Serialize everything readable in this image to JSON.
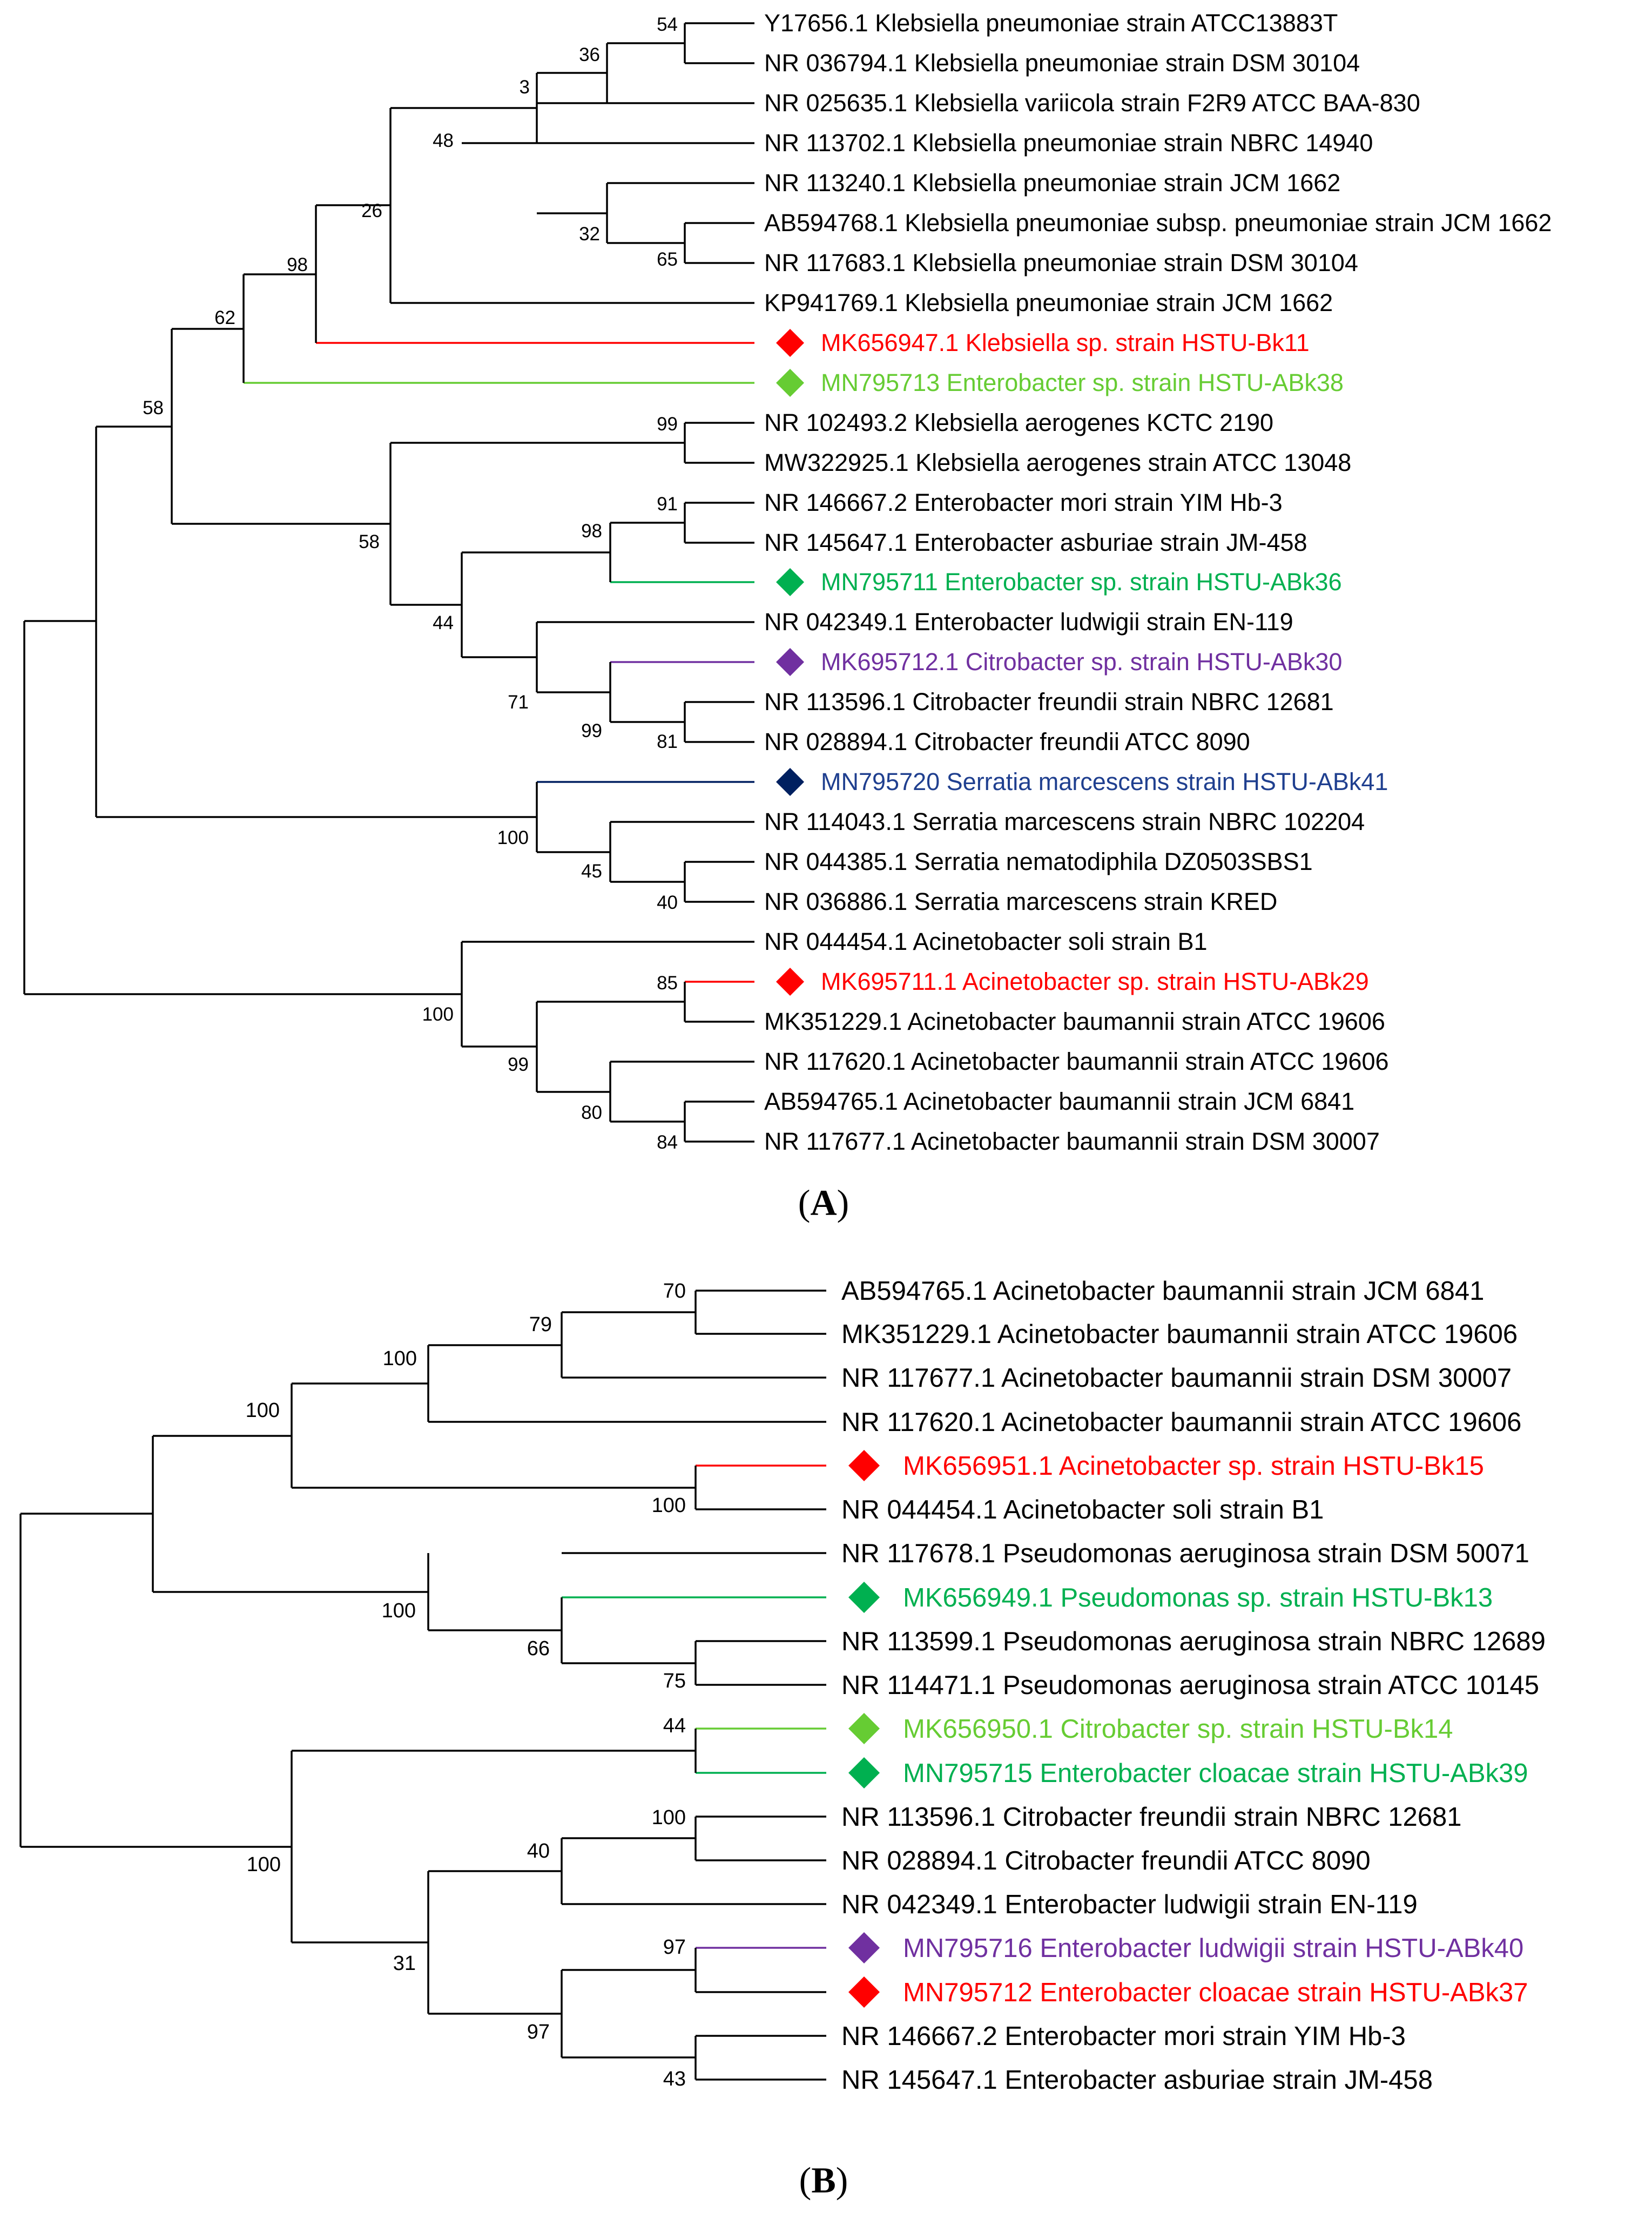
{
  "figure": {
    "panels": [
      {
        "letter": "A",
        "leaves": [
          {
            "label": "Y17656.1 Klebsiella pneumoniae strain ATCC13883T"
          },
          {
            "label": "NR 036794.1 Klebsiella pneumoniae strain DSM 30104"
          },
          {
            "label": "NR 025635.1 Klebsiella variicola strain F2R9 ATCC BAA-830"
          },
          {
            "label": "NR 113702.1 Klebsiella pneumoniae strain NBRC 14940"
          },
          {
            "label": "NR 113240.1 Klebsiella pneumoniae strain JCM 1662"
          },
          {
            "label": "AB594768.1 Klebsiella pneumoniae subsp. pneumoniae strain JCM 1662"
          },
          {
            "label": "NR 117683.1 Klebsiella pneumoniae strain DSM 30104"
          },
          {
            "label": "KP941769.1 Klebsiella pneumoniae strain JCM 1662"
          },
          {
            "label": "MK656947.1 Klebsiella sp. strain HSTU-Bk11",
            "color": "#ff0000",
            "marker": "diamond"
          },
          {
            "label": "MN795713 Enterobacter sp. strain HSTU-ABk38",
            "color": "#66cc33",
            "marker": "diamond"
          },
          {
            "label": "NR 102493.2 Klebsiella aerogenes KCTC 2190"
          },
          {
            "label": "MW322925.1 Klebsiella aerogenes strain ATCC 13048"
          },
          {
            "label": "NR 146667.2 Enterobacter mori strain YIM Hb-3"
          },
          {
            "label": "NR 145647.1 Enterobacter asburiae strain JM-458"
          },
          {
            "label": "MN795711 Enterobacter sp. strain HSTU-ABk36",
            "color": "#00b050",
            "marker": "diamond"
          },
          {
            "label": "NR 042349.1 Enterobacter ludwigii strain EN-119"
          },
          {
            "label": "MK695712.1 Citrobacter sp. strain HSTU-ABk30",
            "color": "#7030a0",
            "marker": "diamond"
          },
          {
            "label": "NR 113596.1 Citrobacter freundii strain NBRC 12681"
          },
          {
            "label": "NR 028894.1 Citrobacter freundii ATCC 8090"
          },
          {
            "label": "MN795720 Serratia marcescens strain HSTU-ABk41",
            "color": "#002060",
            "marker": "diamond"
          },
          {
            "label": "NR 114043.1 Serratia marcescens strain NBRC 102204"
          },
          {
            "label": "NR 044385.1 Serratia nematodiphila DZ0503SBS1"
          },
          {
            "label": "NR 036886.1 Serratia marcescens strain KRED"
          },
          {
            "label": "NR 044454.1 Acinetobacter soli strain B1"
          },
          {
            "label": "MK695711.1 Acinetobacter sp. strain HSTU-ABk29",
            "color": "#ff0000",
            "marker": "diamond"
          },
          {
            "label": "MK351229.1 Acinetobacter baumannii strain ATCC 19606"
          },
          {
            "label": "NR 117620.1 Acinetobacter baumannii strain ATCC 19606"
          },
          {
            "label": "AB594765.1 Acinetobacter baumannii strain JCM 6841"
          },
          {
            "label": "NR 117677.1 Acinetobacter baumannii strain DSM 30007"
          }
        ],
        "bootstrap": [
          "54",
          "36",
          "3",
          "48",
          "32",
          "65",
          "26",
          "98",
          "62",
          "58",
          "99",
          "91",
          "98",
          "58",
          "44",
          "71",
          "99",
          "81",
          "100",
          "45",
          "40",
          "100",
          "85",
          "99",
          "80",
          "84"
        ]
      },
      {
        "letter": "B",
        "leaves": [
          {
            "label": "AB594765.1 Acinetobacter baumannii strain JCM 6841"
          },
          {
            "label": "MK351229.1 Acinetobacter baumannii strain ATCC 19606"
          },
          {
            "label": "NR 117677.1 Acinetobacter baumannii strain DSM 30007"
          },
          {
            "label": "NR 117620.1 Acinetobacter baumannii strain ATCC 19606"
          },
          {
            "label": "MK656951.1 Acinetobacter sp. strain HSTU-Bk15",
            "color": "#ff0000",
            "marker": "diamond"
          },
          {
            "label": "NR 044454.1 Acinetobacter soli strain B1"
          },
          {
            "label": "NR 117678.1 Pseudomonas aeruginosa strain DSM 50071"
          },
          {
            "label": "MK656949.1 Pseudomonas sp. strain HSTU-Bk13",
            "color": "#00b050",
            "marker": "diamond"
          },
          {
            "label": "NR 113599.1 Pseudomonas aeruginosa strain NBRC 12689"
          },
          {
            "label": "NR 114471.1 Pseudomonas aeruginosa strain ATCC 10145"
          },
          {
            "label": "MK656950.1 Citrobacter sp. strain HSTU-Bk14",
            "color": "#66cc33",
            "marker": "diamond"
          },
          {
            "label": "MN795715 Enterobacter cloacae strain HSTU-ABk39",
            "color": "#00b050",
            "marker": "diamond"
          },
          {
            "label": "NR 113596.1 Citrobacter freundii strain NBRC 12681"
          },
          {
            "label": "NR 028894.1 Citrobacter freundii ATCC 8090"
          },
          {
            "label": "NR 042349.1 Enterobacter ludwigii strain EN-119"
          },
          {
            "label": "MN795716 Enterobacter ludwigii strain HSTU-ABk40",
            "color": "#7030a0",
            "marker": "diamond"
          },
          {
            "label": "MN795712 Enterobacter cloacae strain HSTU-ABk37",
            "color": "#ff0000",
            "marker": "diamond"
          },
          {
            "label": "NR 146667.2 Enterobacter mori strain YIM Hb-3"
          },
          {
            "label": "NR 145647.1 Enterobacter asburiae strain JM-458"
          }
        ],
        "bootstrap": [
          "70",
          "79",
          "100",
          "100",
          "100",
          "100",
          "66",
          "75",
          "44",
          "100",
          "40",
          "97",
          "97",
          "43",
          "31",
          "100"
        ]
      }
    ]
  }
}
